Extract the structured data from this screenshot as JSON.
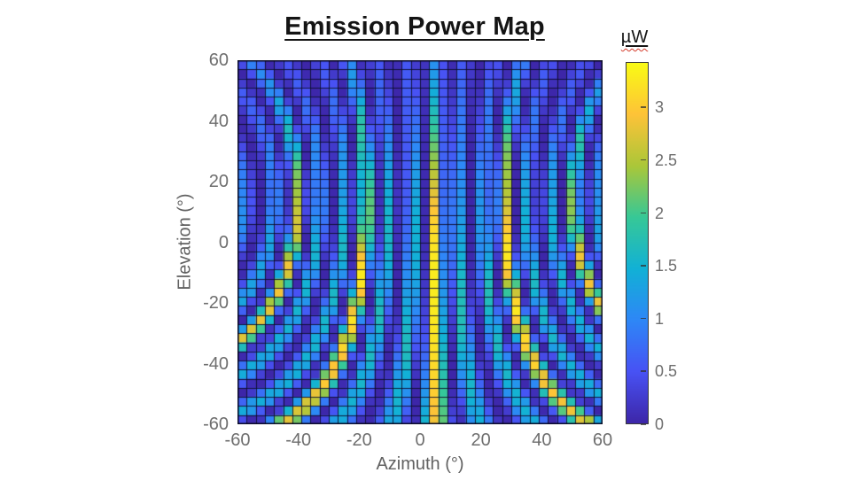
{
  "page": {
    "background": "#ffffff"
  },
  "chart_data": {
    "type": "heatmap",
    "title": "Emission Power Map",
    "xlabel": "Azimuth (°)",
    "ylabel": "Elevation (°)",
    "units": "µW",
    "x_range": [
      -60,
      60
    ],
    "y_range": [
      -60,
      60
    ],
    "x_tick_values": [
      -60,
      -40,
      -20,
      0,
      20,
      40,
      60
    ],
    "x_tick_labels": [
      "-60",
      "-40",
      "-20",
      "0",
      "20",
      "40",
      "60"
    ],
    "y_tick_values": [
      60,
      40,
      20,
      0,
      -20,
      -40,
      -60
    ],
    "y_tick_labels": [
      "60",
      "40",
      "20",
      "0",
      "-20",
      "-40",
      "-60"
    ],
    "grid": {
      "cols": 40,
      "rows": 40,
      "cell_deg": 3,
      "edges_visible": true,
      "edge_color": "rgba(13,13,42,0.9)"
    },
    "colorbar": {
      "label": "µW",
      "location": "right",
      "vmin": 0,
      "vmax": 3.43,
      "tick_values": [
        0,
        0.5,
        1,
        1.5,
        2,
        2.5,
        3
      ],
      "tick_labels": [
        "0",
        "0.5",
        "1",
        "1.5",
        "2",
        "2.5",
        "3"
      ]
    },
    "colormap": {
      "name": "parula",
      "stops": [
        "#3D26A8",
        "#4852F4",
        "#2E87F7",
        "#12B1D6",
        "#37C897",
        "#ABC739",
        "#FEC338",
        "#F9FB15"
      ]
    },
    "pattern": {
      "description": "Interference-fringe emission pattern: near-vertical lobes that curve outward toward low elevation (waist near el +15°). Main lobe at azimuth +5° peaking ~3.4 µW; strong grating lobes near azimuth -45, -18, +28, +53 at el 0; two weak cyan sidelobe fringes (~1.5 µW) between each pair of strong lobes; intensity fades toward high elevation.",
      "main_lobe": {
        "azimuth_deg": 5,
        "peak_uW": 3.43
      },
      "strong_lobe_azimuths_at_el0": [
        -45,
        -18,
        5,
        28,
        53
      ],
      "weak_fringe_spacing_deg": 7.5,
      "value_model": {
        "formula": "v(az,el) = peak * env(el) * cos^2(psi) * (floor + (1-floor)*cos^2(psi/3)) * (1-u^2)^taper, with u = sin(az-az0)*cos(b*(el-el0)), psi = a*|u| + d*|u|^3, env = exp(-((el-env_center)/width)^2), width = width_above if el>=env_center else width_below",
        "peak": 3.43,
        "az0": 5,
        "el0": 15,
        "b": 0.8,
        "a": 23.425,
        "d": 6.196,
        "floor": 0.32,
        "taper": 0.25,
        "env_center": -10,
        "width_above": 65,
        "width_below": 120
      }
    }
  },
  "axes_style": {
    "tick_color": "#6e6e6e",
    "label_color": "#616161",
    "title_color": "#141414"
  }
}
